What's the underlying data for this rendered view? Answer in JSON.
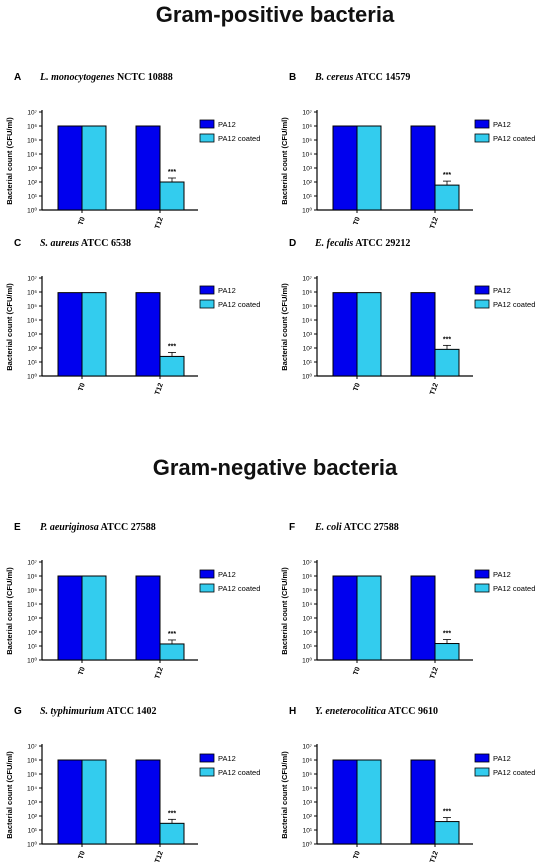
{
  "page": {
    "title_positive": "Gram-positive bacteria",
    "title_negative": "Gram-negative bacteria"
  },
  "common": {
    "ylabel": "Bacterial count (CFU/ml)",
    "categories": [
      "T0",
      "T12"
    ],
    "series_names": [
      "PA12",
      "PA12 coated"
    ],
    "colors": {
      "PA12": "#0000ee",
      "PA12 coated": "#33ccee"
    },
    "significance": "***",
    "y_ticks": [
      "10⁰",
      "10¹",
      "10²",
      "10³",
      "10⁴",
      "10⁵",
      "10⁶",
      "10⁷"
    ]
  },
  "chart_data": [
    {
      "type": "bar",
      "letter": "A",
      "organism": "L. monocytogenes",
      "strain": "NCTC 10888",
      "categories": [
        "T0",
        "T12"
      ],
      "yscale": "log",
      "ylim": [
        1,
        10000000
      ],
      "ylabel": "Bacterial count (CFU/ml)",
      "series": [
        {
          "name": "PA12",
          "values": [
            1000000,
            1000000
          ]
        },
        {
          "name": "PA12 coated",
          "values": [
            1000000,
            100
          ]
        }
      ],
      "annotations": [
        "***"
      ]
    },
    {
      "type": "bar",
      "letter": "B",
      "organism": "B. cereus",
      "strain": "ATCC 14579",
      "categories": [
        "T0",
        "T12"
      ],
      "yscale": "log",
      "ylim": [
        1,
        10000000
      ],
      "ylabel": "Bacterial count (CFU/ml)",
      "series": [
        {
          "name": "PA12",
          "values": [
            1000000,
            1000000
          ]
        },
        {
          "name": "PA12 coated",
          "values": [
            1000000,
            60
          ]
        }
      ],
      "annotations": [
        "***"
      ]
    },
    {
      "type": "bar",
      "letter": "C",
      "organism": "S. aureus",
      "strain": "ATCC 6538",
      "categories": [
        "T0",
        "T12"
      ],
      "yscale": "log",
      "ylim": [
        1,
        10000000
      ],
      "ylabel": "Bacterial count (CFU/ml)",
      "series": [
        {
          "name": "PA12",
          "values": [
            900000,
            900000
          ]
        },
        {
          "name": "PA12 coated",
          "values": [
            900000,
            25
          ]
        }
      ],
      "annotations": [
        "***"
      ]
    },
    {
      "type": "bar",
      "letter": "D",
      "organism": "E. fecalis",
      "strain": "ATCC 29212",
      "categories": [
        "T0",
        "T12"
      ],
      "yscale": "log",
      "ylim": [
        1,
        10000000
      ],
      "ylabel": "Bacterial count (CFU/ml)",
      "series": [
        {
          "name": "PA12",
          "values": [
            900000,
            900000
          ]
        },
        {
          "name": "PA12 coated",
          "values": [
            900000,
            80
          ]
        }
      ],
      "annotations": [
        "***"
      ]
    },
    {
      "type": "bar",
      "letter": "E",
      "organism": "P. aeuriginosa",
      "strain": "ATCC 27588",
      "categories": [
        "T0",
        "T12"
      ],
      "yscale": "log",
      "ylim": [
        1,
        10000000
      ],
      "ylabel": "Bacterial count (CFU/ml)",
      "series": [
        {
          "name": "PA12",
          "values": [
            1000000,
            1000000
          ]
        },
        {
          "name": "PA12 coated",
          "values": [
            1000000,
            14
          ]
        }
      ],
      "annotations": [
        "***"
      ]
    },
    {
      "type": "bar",
      "letter": "F",
      "organism": "E. coli",
      "strain": "ATCC 27588",
      "categories": [
        "T0",
        "T12"
      ],
      "yscale": "log",
      "ylim": [
        1,
        10000000
      ],
      "ylabel": "Bacterial count (CFU/ml)",
      "series": [
        {
          "name": "PA12",
          "values": [
            1000000,
            1000000
          ]
        },
        {
          "name": "PA12 coated",
          "values": [
            1000000,
            15
          ]
        }
      ],
      "annotations": [
        "***"
      ]
    },
    {
      "type": "bar",
      "letter": "G",
      "organism": "S. typhimurium",
      "strain": "ATCC 1402",
      "categories": [
        "T0",
        "T12"
      ],
      "yscale": "log",
      "ylim": [
        1,
        10000000
      ],
      "ylabel": "Bacterial count (CFU/ml)",
      "series": [
        {
          "name": "PA12",
          "values": [
            1000000,
            1000000
          ]
        },
        {
          "name": "PA12 coated",
          "values": [
            1000000,
            30
          ]
        }
      ],
      "annotations": [
        "***"
      ]
    },
    {
      "type": "bar",
      "letter": "H",
      "organism": "Y. eneterocolitica",
      "strain": "ATCC 9610",
      "categories": [
        "T0",
        "T12"
      ],
      "yscale": "log",
      "ylim": [
        1,
        10000000
      ],
      "ylabel": "Bacterial count (CFU/ml)",
      "series": [
        {
          "name": "PA12",
          "values": [
            1000000,
            1000000
          ]
        },
        {
          "name": "PA12 coated",
          "values": [
            1000000,
            40
          ]
        }
      ],
      "annotations": [
        "***"
      ]
    }
  ]
}
